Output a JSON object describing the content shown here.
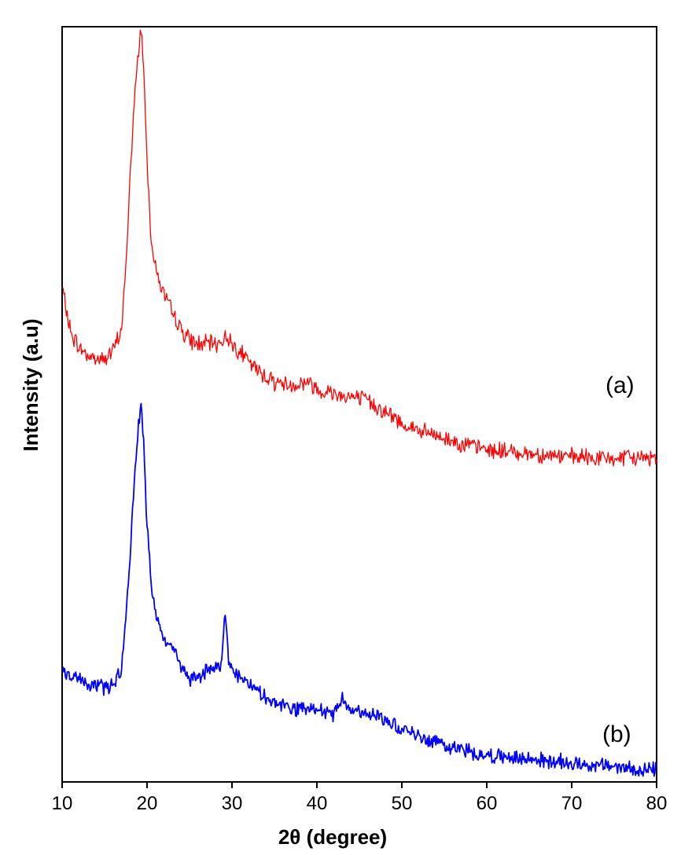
{
  "chart_data": {
    "type": "line",
    "title": "",
    "xlabel": "2θ (degree)",
    "ylabel": "Intensity (a.u)",
    "xlim": [
      10,
      80
    ],
    "ylim": [
      0,
      100
    ],
    "xticks": [
      10,
      20,
      30,
      40,
      50,
      60,
      70,
      80
    ],
    "yticks_shown": false,
    "grid": false,
    "colors": {
      "a": "#ff0000",
      "b": "#0000ff"
    },
    "series": [
      {
        "label": "(a)",
        "color": "#ff0000",
        "x": [
          10,
          11,
          12,
          13,
          14,
          15,
          16,
          17,
          17.5,
          18,
          18.5,
          19,
          19.3,
          19.6,
          20,
          20.5,
          21,
          22,
          23,
          24,
          25,
          26,
          27,
          28,
          29,
          29.5,
          30,
          31,
          32,
          33,
          35,
          37,
          39,
          40,
          42,
          44,
          46,
          48,
          50,
          52,
          55,
          58,
          60,
          65,
          70,
          75,
          80
        ],
        "y": [
          65.5,
          59.5,
          57.5,
          56.5,
          56.0,
          56.0,
          57.0,
          60.0,
          68.0,
          80.0,
          90.0,
          97.0,
          100.0,
          95.0,
          82.0,
          72.0,
          68.0,
          64.5,
          62.0,
          60.0,
          58.5,
          58.0,
          58.0,
          58.0,
          58.5,
          59.0,
          58.0,
          57.0,
          55.5,
          54.5,
          53.0,
          52.5,
          53.0,
          52.0,
          51.5,
          51.0,
          50.5,
          49.0,
          47.5,
          46.5,
          45.5,
          44.5,
          44.0,
          43.5,
          43.0,
          42.8,
          43.0
        ]
      },
      {
        "label": "(b)",
        "color": "#0000ff",
        "x": [
          10,
          11,
          12,
          13,
          14,
          15,
          16,
          17,
          17.5,
          18,
          18.5,
          19,
          19.3,
          19.6,
          20,
          20.5,
          21,
          22,
          23,
          24,
          25,
          26,
          27,
          28,
          28.8,
          29.2,
          29.6,
          30,
          31,
          32,
          34,
          36,
          38,
          40,
          42,
          43,
          45,
          47,
          48,
          50,
          52,
          55,
          58,
          60,
          65,
          70,
          75,
          80
        ],
        "y": [
          14.5,
          14.0,
          13.5,
          13.0,
          13.0,
          12.5,
          13.0,
          15.0,
          22.0,
          30.0,
          40.0,
          47.0,
          50.0,
          45.0,
          34.0,
          26.0,
          22.0,
          18.5,
          18.0,
          15.5,
          13.5,
          14.0,
          14.5,
          15.0,
          16.0,
          23.0,
          16.0,
          15.0,
          14.0,
          13.0,
          11.0,
          10.0,
          9.5,
          9.5,
          9.0,
          11.0,
          9.0,
          9.0,
          8.5,
          7.0,
          6.0,
          5.0,
          4.0,
          3.5,
          3.0,
          2.5,
          2.0,
          1.5
        ]
      }
    ],
    "annotations": [
      "(a)",
      "(b)"
    ]
  }
}
